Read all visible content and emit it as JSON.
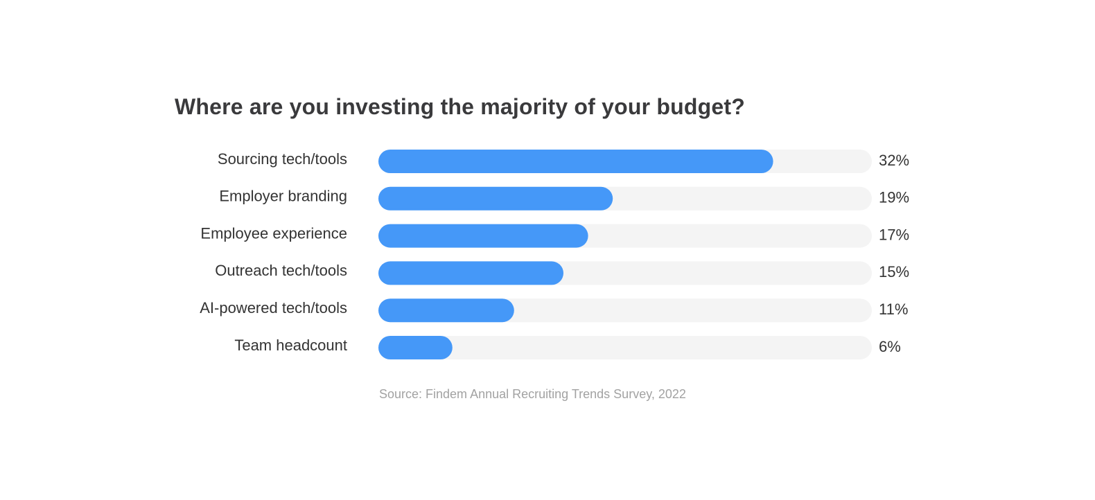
{
  "chart_data": {
    "type": "bar",
    "orientation": "horizontal",
    "title": "Where are you investing the majority of your budget?",
    "categories": [
      "Sourcing tech/tools",
      "Employer branding",
      "Employee experience",
      "Outreach tech/tools",
      "AI-powered tech/tools",
      "Team headcount"
    ],
    "values": [
      32,
      19,
      17,
      15,
      11,
      6
    ],
    "value_labels": [
      "32%",
      "19%",
      "17%",
      "15%",
      "11%",
      "6%"
    ],
    "unit": "%",
    "xlim": [
      0,
      40
    ],
    "grid": false,
    "legend": "none",
    "bar_color": "#4598f8",
    "track_color": "#f4f4f4",
    "source": "Source: Findem Annual Recruiting Trends Survey, 2022"
  }
}
